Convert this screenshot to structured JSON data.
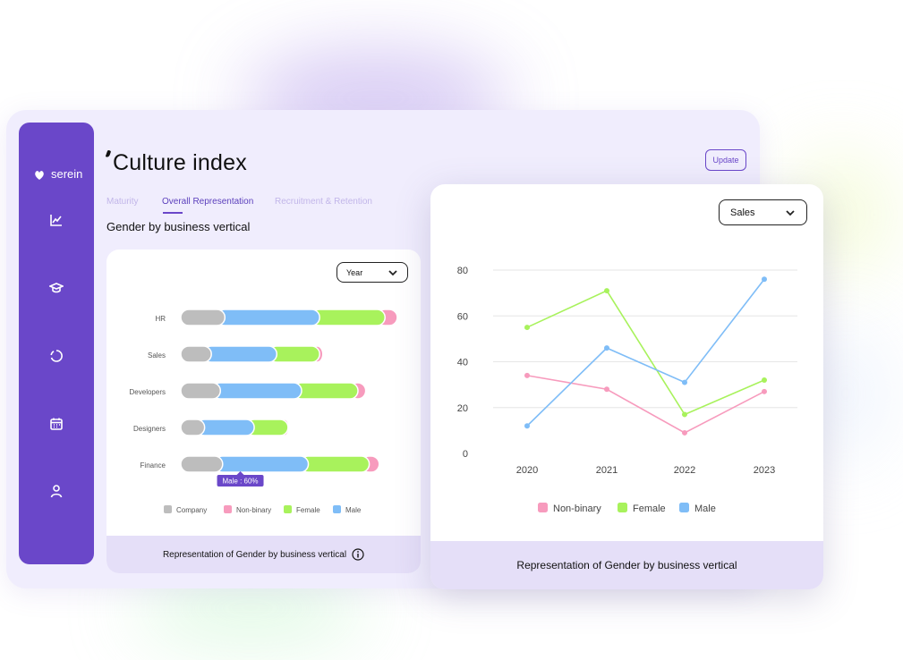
{
  "brand": {
    "name": "serein"
  },
  "page": {
    "title": "Culture index",
    "update_label": "Update"
  },
  "tabs": [
    {
      "label": "Maturity",
      "active": false
    },
    {
      "label": "Overall Representation",
      "active": true
    },
    {
      "label": "Recruitment & Retention",
      "active": false
    }
  ],
  "section_title": "Gender by business vertical",
  "sidebar": {
    "icons": [
      "chart-line-icon",
      "graduation-cap-icon",
      "circle-progress-icon",
      "calendar-icon",
      "user-icon"
    ]
  },
  "bar_card": {
    "select_value": "Year",
    "footer": "Representation of Gender by business vertical",
    "tooltip": "Male : 60%"
  },
  "line_card": {
    "select_value": "Sales",
    "footer": "Representation of Gender by business vertical"
  },
  "colors": {
    "accent": "#6a47c9",
    "company": "#bdbdbd",
    "non_binary": "#f79bbd",
    "female": "#a8f25c",
    "male": "#7fbdf7"
  },
  "chart_data": [
    {
      "type": "bar",
      "stacked": true,
      "orientation": "horizontal",
      "categories": [
        "HR",
        "Sales",
        "Developers",
        "Designers",
        "Finance"
      ],
      "series": [
        {
          "name": "Company",
          "values": [
            16,
            10,
            14,
            7,
            15
          ]
        },
        {
          "name": "Male",
          "values": [
            42,
            29,
            36,
            22,
            38
          ]
        },
        {
          "name": "Female",
          "values": [
            29,
            19,
            25,
            15,
            27
          ]
        },
        {
          "name": "Non-binary",
          "values": [
            9,
            5,
            7,
            4,
            8
          ]
        }
      ],
      "legend": [
        "Company",
        "Non-binary",
        "Female",
        "Male"
      ],
      "legend_position": "bottom",
      "grid": false
    },
    {
      "type": "line",
      "x": [
        "2020",
        "2021",
        "2022",
        "2023"
      ],
      "series": [
        {
          "name": "Non-binary",
          "values": [
            34,
            28,
            9,
            27
          ]
        },
        {
          "name": "Female",
          "values": [
            55,
            71,
            17,
            32
          ]
        },
        {
          "name": "Male",
          "values": [
            12,
            46,
            31,
            76
          ]
        }
      ],
      "ylim": [
        0,
        80
      ],
      "yticks": [
        0,
        20,
        40,
        60,
        80
      ],
      "grid": true,
      "legend_position": "bottom"
    }
  ]
}
